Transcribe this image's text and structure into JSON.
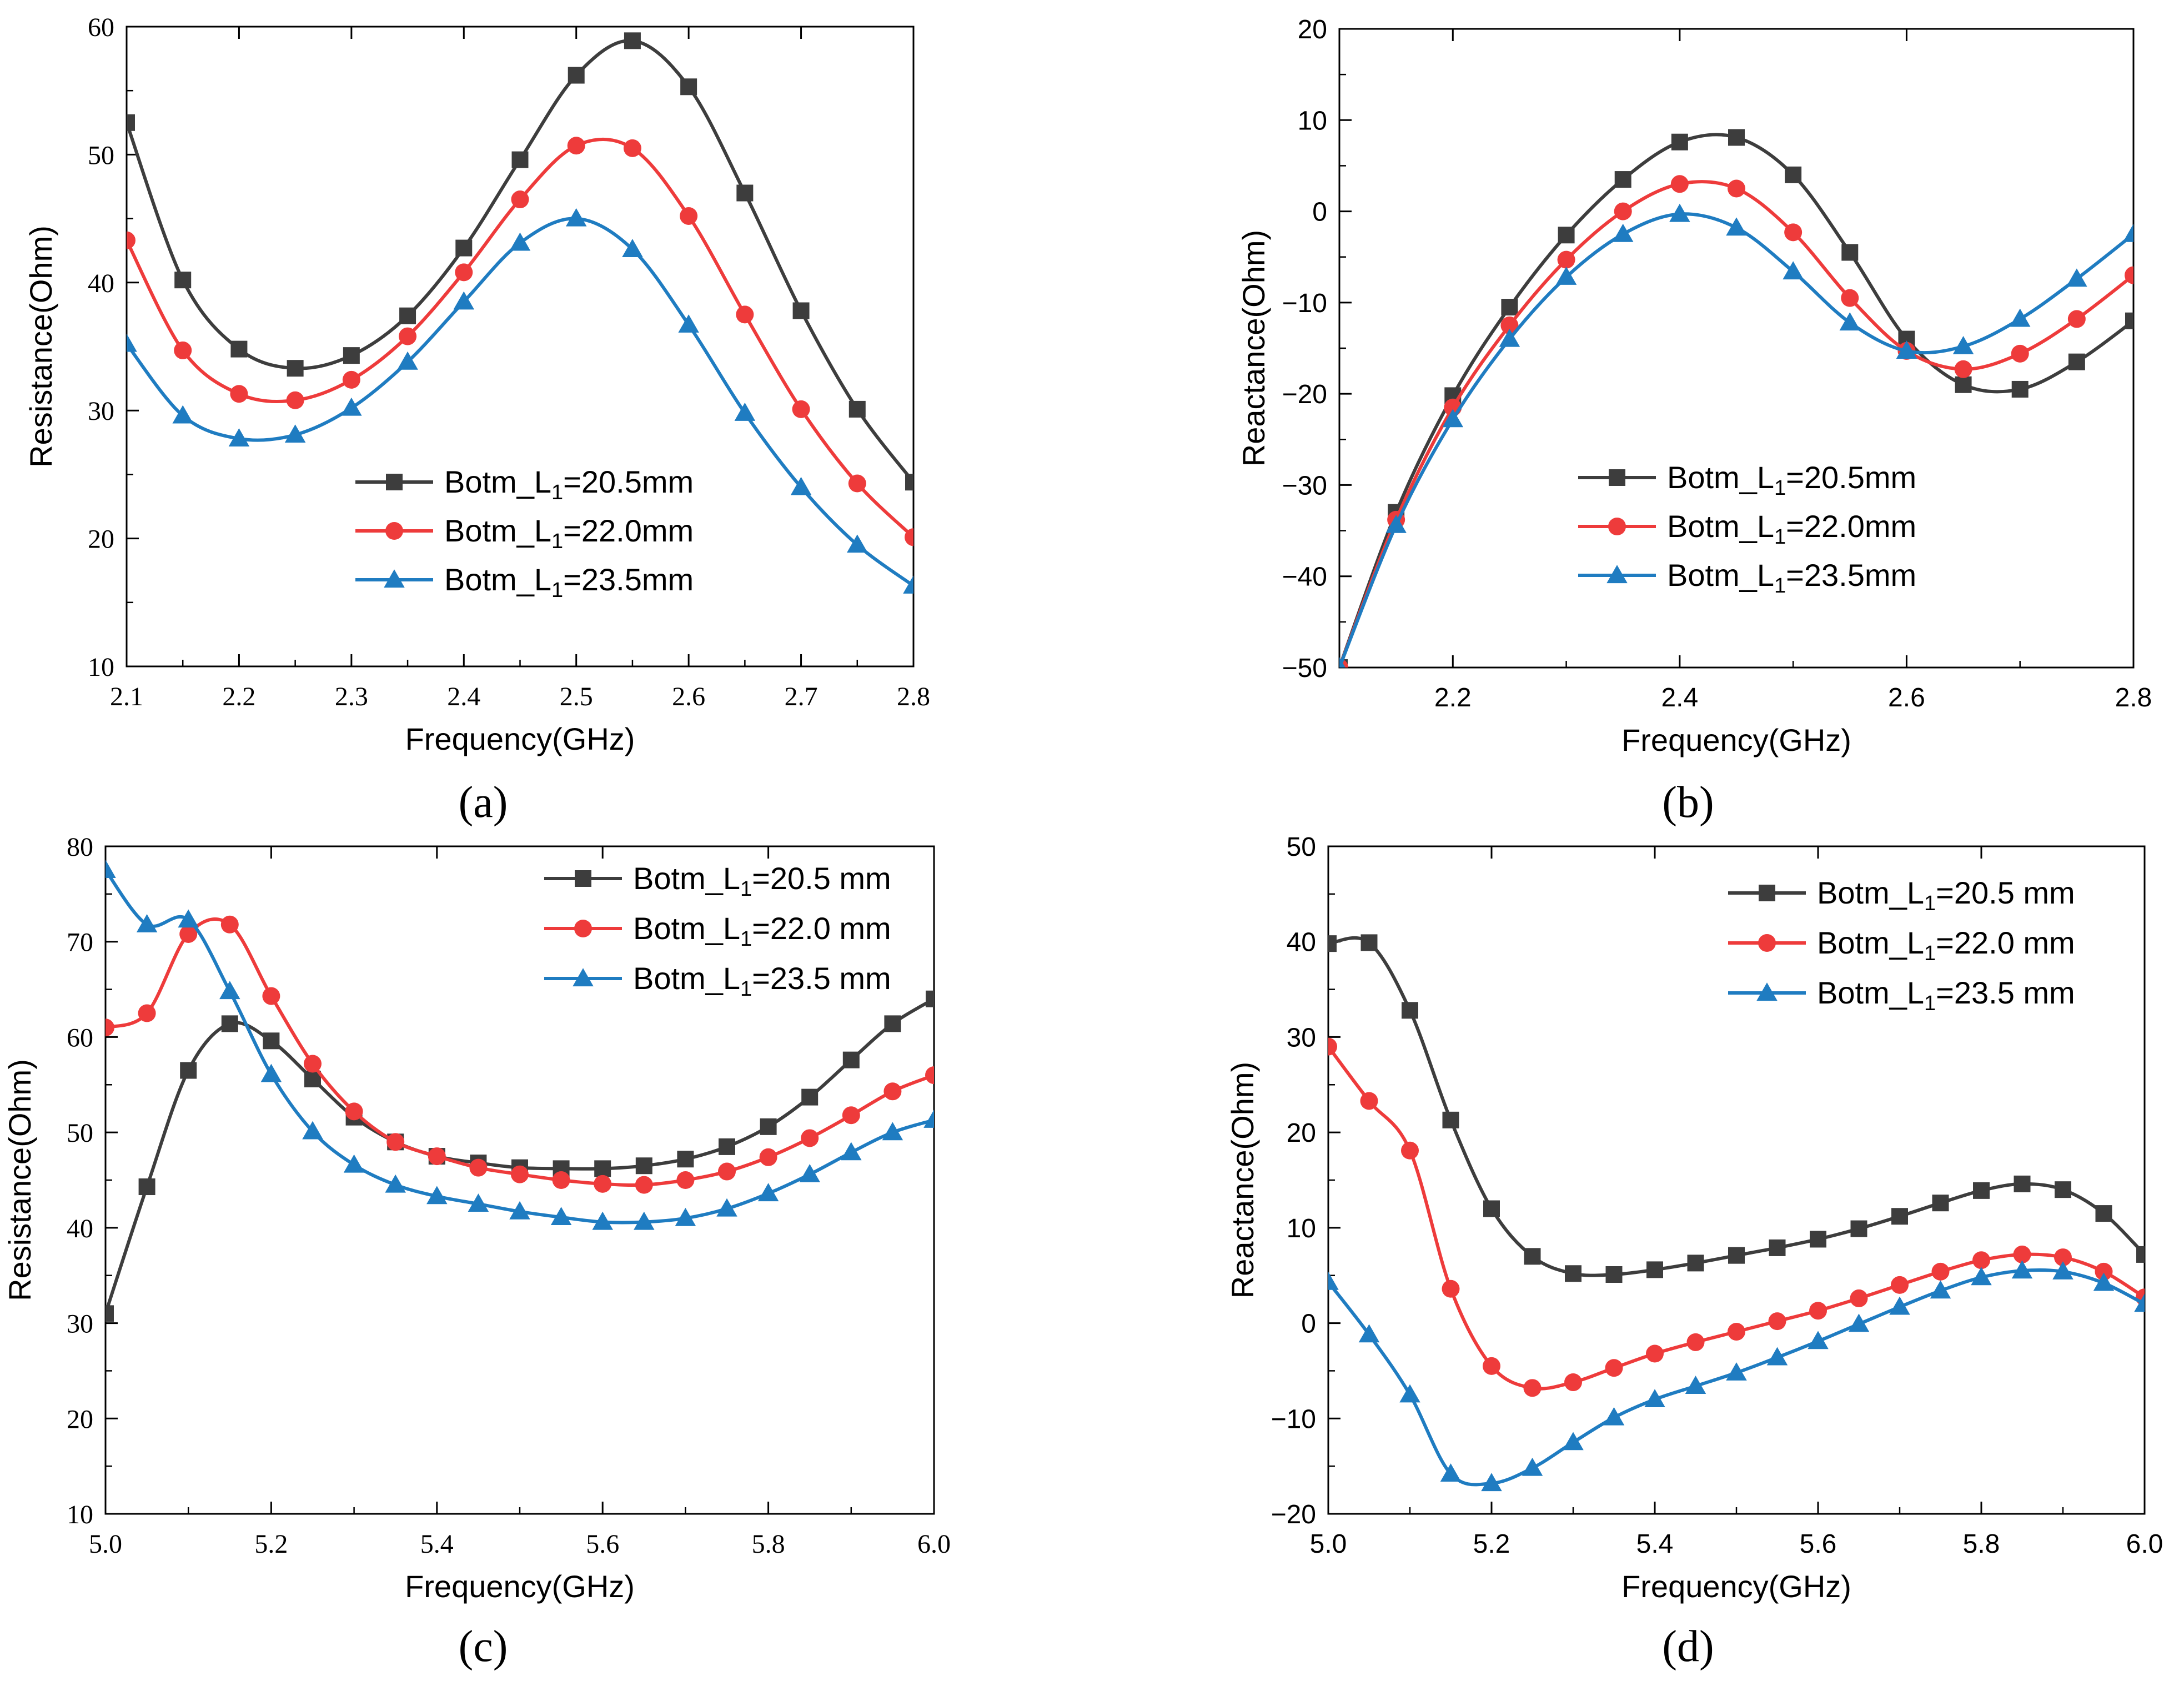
{
  "colors": {
    "s1": "#3d3d3d",
    "s2": "#ee3b3b",
    "s3": "#1f7cc1",
    "axis": "#000000"
  },
  "chart_data": [
    {
      "panel": "a",
      "caption": "(a)",
      "type": "line",
      "xlabel": "Frequency(GHz)",
      "ylabel": "Resistance(Ohm)",
      "xlim": [
        2.1,
        2.8
      ],
      "ylim": [
        10,
        60
      ],
      "xticks": [
        2.1,
        2.2,
        2.3,
        2.4,
        2.5,
        2.6,
        2.7,
        2.8
      ],
      "xtick_labels": [
        "2.1",
        "2.2",
        "2.3",
        "2.4",
        "2.5",
        "2.6",
        "2.7",
        "2.8"
      ],
      "yticks": [
        10,
        20,
        30,
        40,
        50,
        60
      ],
      "ytick_labels": [
        "10",
        "20",
        "30",
        "40",
        "50",
        "60"
      ],
      "legend": "center-right",
      "series": [
        {
          "name": "Botm_L1=20.5mm",
          "prefix": "Botm_L",
          "sub": "1",
          "suffix": "=20.5mm",
          "marker": "square",
          "color_key": "s1",
          "x": [
            2.1,
            2.15,
            2.2,
            2.25,
            2.3,
            2.35,
            2.4,
            2.45,
            2.5,
            2.55,
            2.6,
            2.65,
            2.7,
            2.75,
            2.8
          ],
          "y": [
            52.5,
            40.2,
            34.8,
            33.3,
            34.3,
            37.4,
            42.7,
            49.6,
            56.2,
            58.9,
            55.3,
            47.0,
            37.8,
            30.1,
            24.4
          ]
        },
        {
          "name": "Botm_L1=22.0mm",
          "prefix": "Botm_L",
          "sub": "1",
          "suffix": "=22.0mm",
          "marker": "circle",
          "color_key": "s2",
          "x": [
            2.1,
            2.15,
            2.2,
            2.25,
            2.3,
            2.35,
            2.4,
            2.45,
            2.5,
            2.55,
            2.6,
            2.65,
            2.7,
            2.75,
            2.8
          ],
          "y": [
            43.3,
            34.7,
            31.3,
            30.8,
            32.4,
            35.8,
            40.8,
            46.5,
            50.7,
            50.5,
            45.2,
            37.5,
            30.1,
            24.3,
            20.1
          ]
        },
        {
          "name": "Botm_L1=23.5mm",
          "prefix": "Botm_L",
          "sub": "1",
          "suffix": "=23.5mm",
          "marker": "triangle",
          "color_key": "s3",
          "x": [
            2.1,
            2.15,
            2.2,
            2.25,
            2.3,
            2.35,
            2.4,
            2.45,
            2.5,
            2.55,
            2.6,
            2.65,
            2.7,
            2.75,
            2.8
          ],
          "y": [
            35.2,
            29.6,
            27.8,
            28.1,
            30.2,
            33.8,
            38.5,
            43.1,
            45.0,
            42.6,
            36.7,
            29.8,
            24.0,
            19.5,
            16.3
          ]
        }
      ]
    },
    {
      "panel": "b",
      "caption": "(b)",
      "type": "line",
      "xlabel": "Frequency(GHz)",
      "ylabel": "Reactance(Ohm)",
      "xlim": [
        2.1,
        2.8
      ],
      "ylim": [
        -50,
        20
      ],
      "xticks": [
        2.2,
        2.4,
        2.6,
        2.8
      ],
      "xtick_labels": [
        "2.2",
        "2.4",
        "2.6",
        "2.8"
      ],
      "yticks": [
        -50,
        -40,
        -30,
        -20,
        -10,
        0,
        10,
        20
      ],
      "ytick_labels": [
        "−50",
        "−40",
        "−30",
        "−20",
        "−10",
        "0",
        "10",
        "20"
      ],
      "legend": "center-right",
      "series": [
        {
          "name": "Botm_L1=20.5mm",
          "prefix": "Botm_L",
          "sub": "1",
          "suffix": "=20.5mm",
          "marker": "square",
          "color_key": "s1",
          "x": [
            2.1,
            2.15,
            2.2,
            2.25,
            2.3,
            2.35,
            2.4,
            2.45,
            2.5,
            2.55,
            2.6,
            2.65,
            2.7,
            2.75,
            2.8
          ],
          "y": [
            -50,
            -33.0,
            -20.2,
            -10.5,
            -2.6,
            3.5,
            7.6,
            8.1,
            4.0,
            -4.5,
            -14.0,
            -19.0,
            -19.5,
            -16.5,
            -12.0
          ]
        },
        {
          "name": "Botm_L1=22.0mm",
          "prefix": "Botm_L",
          "sub": "1",
          "suffix": "=22.0mm",
          "marker": "circle",
          "color_key": "s2",
          "x": [
            2.1,
            2.15,
            2.2,
            2.25,
            2.3,
            2.35,
            2.4,
            2.45,
            2.5,
            2.55,
            2.6,
            2.65,
            2.7,
            2.75,
            2.8
          ],
          "y": [
            -50,
            -33.8,
            -21.5,
            -12.5,
            -5.3,
            0.0,
            3.0,
            2.5,
            -2.3,
            -9.5,
            -15.3,
            -17.3,
            -15.6,
            -11.8,
            -7.0
          ]
        },
        {
          "name": "Botm_L1=23.5mm",
          "prefix": "Botm_L",
          "sub": "1",
          "suffix": "=23.5mm",
          "marker": "triangle",
          "color_key": "s3",
          "x": [
            2.1,
            2.15,
            2.2,
            2.25,
            2.3,
            2.35,
            2.4,
            2.45,
            2.5,
            2.55,
            2.6,
            2.65,
            2.7,
            2.75,
            2.8
          ],
          "y": [
            -50,
            -34.4,
            -22.8,
            -14.0,
            -7.2,
            -2.5,
            -0.3,
            -1.8,
            -6.6,
            -12.2,
            -15.3,
            -14.8,
            -11.8,
            -7.4,
            -2.5
          ]
        }
      ]
    },
    {
      "panel": "c",
      "caption": "(c)",
      "type": "line",
      "xlabel": "Frequency(GHz)",
      "ylabel": "Resistance(Ohm)",
      "xlim": [
        5.0,
        6.0
      ],
      "ylim": [
        10,
        80
      ],
      "xticks": [
        5.0,
        5.2,
        5.4,
        5.6,
        5.8,
        6.0
      ],
      "xtick_labels": [
        "5.0",
        "5.2",
        "5.4",
        "5.6",
        "5.8",
        "6.0"
      ],
      "yticks": [
        10,
        20,
        30,
        40,
        50,
        60,
        70,
        80
      ],
      "ytick_labels": [
        "10",
        "20",
        "30",
        "40",
        "50",
        "60",
        "70",
        "80"
      ],
      "legend": "top-right",
      "series": [
        {
          "name": "Botm_L1=20.5 mm",
          "prefix": "Botm_L",
          "sub": "1",
          "suffix": "=20.5 mm",
          "marker": "square",
          "color_key": "s1",
          "x": [
            5.0,
            5.05,
            5.1,
            5.15,
            5.2,
            5.25,
            5.3,
            5.35,
            5.4,
            5.45,
            5.5,
            5.55,
            5.6,
            5.65,
            5.7,
            5.75,
            5.8,
            5.85,
            5.9,
            5.95,
            6.0
          ],
          "y": [
            31.0,
            44.3,
            56.5,
            61.4,
            59.6,
            55.6,
            51.6,
            49.0,
            47.5,
            46.8,
            46.3,
            46.2,
            46.2,
            46.5,
            47.2,
            48.5,
            50.6,
            53.7,
            57.6,
            61.4,
            64.0
          ]
        },
        {
          "name": "Botm_L1=22.0 mm",
          "prefix": "Botm_L",
          "sub": "1",
          "suffix": "=22.0 mm",
          "marker": "circle",
          "color_key": "s2",
          "x": [
            5.0,
            5.05,
            5.1,
            5.15,
            5.2,
            5.25,
            5.3,
            5.35,
            5.4,
            5.45,
            5.5,
            5.55,
            5.6,
            5.65,
            5.7,
            5.75,
            5.8,
            5.85,
            5.9,
            5.95,
            6.0
          ],
          "y": [
            61.0,
            62.5,
            70.8,
            71.8,
            64.3,
            57.2,
            52.2,
            49.0,
            47.5,
            46.3,
            45.6,
            45.0,
            44.6,
            44.5,
            45.0,
            45.9,
            47.4,
            49.4,
            51.8,
            54.3,
            56.0
          ]
        },
        {
          "name": "Botm_L1=23.5 mm",
          "prefix": "Botm_L",
          "sub": "1",
          "suffix": "=23.5 mm",
          "marker": "triangle",
          "color_key": "s3",
          "x": [
            5.0,
            5.05,
            5.1,
            5.15,
            5.2,
            5.25,
            5.3,
            5.35,
            5.4,
            5.45,
            5.5,
            5.55,
            5.6,
            5.65,
            5.7,
            5.75,
            5.8,
            5.85,
            5.9,
            5.95,
            6.0
          ],
          "y": [
            77.5,
            71.8,
            72.3,
            64.8,
            56.1,
            50.1,
            46.6,
            44.5,
            43.3,
            42.5,
            41.7,
            41.1,
            40.6,
            40.6,
            41.0,
            42.0,
            43.6,
            45.6,
            47.9,
            50.0,
            51.3
          ]
        }
      ]
    },
    {
      "panel": "d",
      "caption": "(d)",
      "type": "line",
      "xlabel": "Frequency(GHz)",
      "ylabel": "Reactance(Ohm)",
      "xlim": [
        5.0,
        6.0
      ],
      "ylim": [
        -20,
        50
      ],
      "xticks": [
        5.0,
        5.2,
        5.4,
        5.6,
        5.8,
        6.0
      ],
      "xtick_labels": [
        "5.0",
        "5.2",
        "5.4",
        "5.6",
        "5.8",
        "6.0"
      ],
      "yticks": [
        -20,
        -10,
        0,
        10,
        20,
        30,
        40,
        50
      ],
      "ytick_labels": [
        "−20",
        "−10",
        "0",
        "10",
        "20",
        "30",
        "40",
        "50"
      ],
      "legend": "top-right",
      "series": [
        {
          "name": "Botm_L1=20.5 mm",
          "prefix": "Botm_L",
          "sub": "1",
          "suffix": "=20.5 mm",
          "marker": "square",
          "color_key": "s1",
          "x": [
            5.0,
            5.05,
            5.1,
            5.15,
            5.2,
            5.25,
            5.3,
            5.35,
            5.4,
            5.45,
            5.5,
            5.55,
            5.6,
            5.65,
            5.7,
            5.75,
            5.8,
            5.85,
            5.9,
            5.95,
            6.0
          ],
          "y": [
            39.8,
            39.9,
            32.8,
            21.3,
            12.0,
            7.0,
            5.2,
            5.1,
            5.6,
            6.3,
            7.1,
            7.9,
            8.8,
            9.9,
            11.2,
            12.6,
            13.9,
            14.6,
            14.0,
            11.5,
            7.2
          ]
        },
        {
          "name": "Botm_L1=22.0 mm",
          "prefix": "Botm_L",
          "sub": "1",
          "suffix": "=22.0 mm",
          "marker": "circle",
          "color_key": "s2",
          "x": [
            5.0,
            5.05,
            5.1,
            5.15,
            5.2,
            5.25,
            5.3,
            5.35,
            5.4,
            5.45,
            5.5,
            5.55,
            5.6,
            5.65,
            5.7,
            5.75,
            5.8,
            5.85,
            5.9,
            5.95,
            6.0
          ],
          "y": [
            29.0,
            23.3,
            18.1,
            3.6,
            -4.5,
            -6.8,
            -6.2,
            -4.7,
            -3.2,
            -2.0,
            -0.9,
            0.2,
            1.3,
            2.6,
            4.0,
            5.4,
            6.6,
            7.2,
            6.9,
            5.4,
            2.7
          ]
        },
        {
          "name": "Botm_L1=23.5 mm",
          "prefix": "Botm_L",
          "sub": "1",
          "suffix": "=23.5 mm",
          "marker": "triangle",
          "color_key": "s3",
          "x": [
            5.0,
            5.05,
            5.1,
            5.15,
            5.2,
            5.25,
            5.3,
            5.35,
            5.4,
            5.45,
            5.5,
            5.55,
            5.6,
            5.65,
            5.7,
            5.75,
            5.8,
            5.85,
            5.9,
            5.95,
            6.0
          ],
          "y": [
            4.3,
            -1.2,
            -7.5,
            -15.8,
            -16.8,
            -15.2,
            -12.5,
            -9.9,
            -8.0,
            -6.6,
            -5.2,
            -3.6,
            -1.9,
            -0.1,
            1.7,
            3.4,
            4.8,
            5.5,
            5.4,
            4.2,
            2.0
          ]
        }
      ]
    }
  ]
}
